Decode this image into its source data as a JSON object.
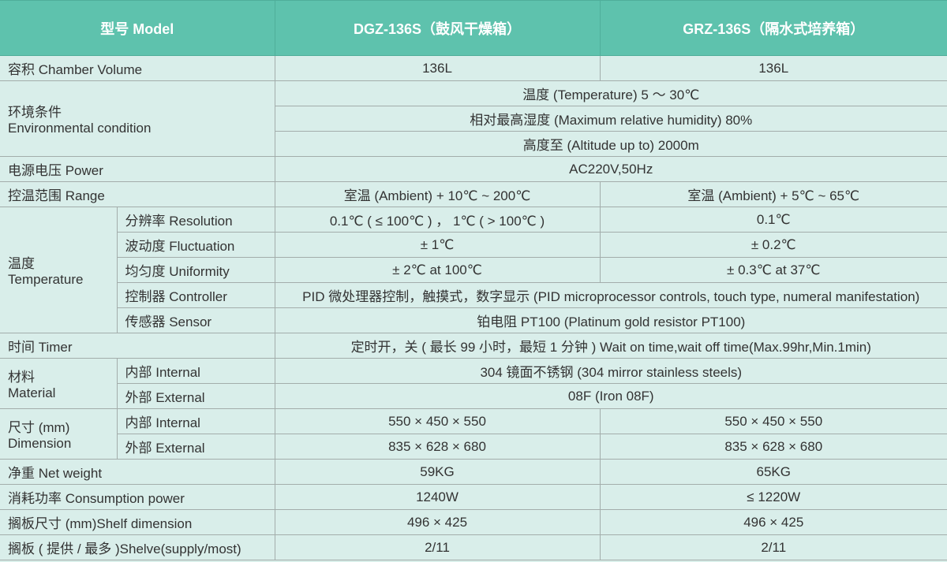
{
  "header": {
    "model": "型号 Model",
    "col1": "DGZ-136S（鼓风干燥箱）",
    "col2": "GRZ-136S（隔水式培养箱）"
  },
  "volume": {
    "label": "容积 Chamber Volume",
    "v1": "136L",
    "v2": "136L"
  },
  "env": {
    "label1": "环境条件",
    "label2": "Environmental condition",
    "temp": "温度 (Temperature) 5 ～ 30℃",
    "humidity": "相对最高湿度 (Maximum relative humidity) 80%",
    "altitude": "高度至 (Altitude up to) 2000m"
  },
  "power": {
    "label": "电源电压 Power",
    "value": "AC220V,50Hz"
  },
  "range": {
    "label": "控温范围 Range",
    "v1": "室温 (Ambient) + 10℃ ~  200℃",
    "v2": "室温 (Ambient) + 5℃ ~ 65℃"
  },
  "temperature": {
    "label1": "温度",
    "label2": "Temperature",
    "resolution": {
      "label": "分辨率 Resolution",
      "v1": "0.1℃ ( ≤ 100℃ ) ， 1℃ ( > 100℃ )",
      "v2": "0.1℃"
    },
    "fluctuation": {
      "label": "波动度 Fluctuation",
      "v1": "± 1℃",
      "v2": "± 0.2℃"
    },
    "uniformity": {
      "label": "均匀度 Uniformity",
      "v1": "± 2℃ at 100℃",
      "v2": "± 0.3℃ at 37℃"
    },
    "controller": {
      "label": "控制器 Controller",
      "value": "PID 微处理器控制，触摸式，数字显示 (PID microprocessor controls, touch type, numeral manifestation)"
    },
    "sensor": {
      "label": "传感器 Sensor",
      "value": "铂电阻 PT100 (Platinum gold resistor PT100)"
    }
  },
  "timer": {
    "label": "时间 Timer",
    "value": "定时开，关 ( 最长 99 小时，最短 1 分钟 )  Wait on time,wait off time(Max.99hr,Min.1min)"
  },
  "material": {
    "label1": "材料",
    "label2": "Material",
    "internal_label": "内部 Internal",
    "internal": "304 镜面不锈钢 (304 mirror stainless steels)",
    "external_label": "外部 External",
    "external": "08F (Iron 08F)"
  },
  "dimension": {
    "label1": "尺寸 (mm)",
    "label2": "Dimension",
    "internal_label": "内部 Internal",
    "internal1": "550 × 450 × 550",
    "internal2": "550 × 450 × 550",
    "external_label": "外部 External",
    "external1": "835 × 628 × 680",
    "external2": "835 × 628 × 680"
  },
  "weight": {
    "label": "净重 Net weight",
    "v1": "59KG",
    "v2": "65KG"
  },
  "consumption": {
    "label": "消耗功率 Consumption power",
    "v1": "1240W",
    "v2": "≤ 1220W"
  },
  "shelf_dim": {
    "label": "搁板尺寸 (mm)Shelf dimension",
    "v1": "496 × 425",
    "v2": "496 × 425"
  },
  "shelves": {
    "label": "搁板 ( 提供 / 最多 )Shelve(supply/most)",
    "v1": "2/11",
    "v2": "2/11"
  },
  "colors": {
    "header": "#5ec2ad",
    "body": "#d9eeea"
  }
}
